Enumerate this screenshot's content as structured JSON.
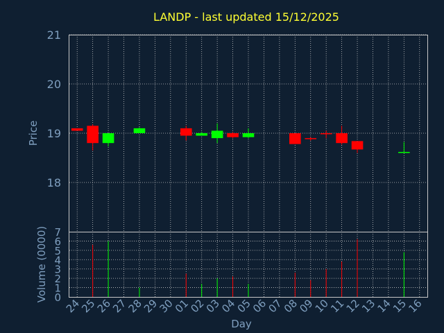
{
  "chart_data": {
    "type": "candlestick",
    "title": "LANDP - last updated 15/12/2025",
    "price_panel": {
      "ylabel": "Price",
      "ylim": [
        17.0,
        21.0
      ],
      "yticks": [
        18,
        19,
        20,
        21
      ]
    },
    "volume_panel": {
      "ylabel": "Volume (0000)",
      "ylim": [
        0,
        7
      ],
      "yticks": [
        0,
        1,
        2,
        3,
        4,
        5,
        6,
        7
      ]
    },
    "xlabel": "Day",
    "x_ticks": [
      "24",
      "25",
      "26",
      "27",
      "28",
      "29",
      "30",
      "01",
      "02",
      "03",
      "04",
      "05",
      "06",
      "07",
      "08",
      "09",
      "10",
      "11",
      "12",
      "13",
      "14",
      "15",
      "16"
    ],
    "candles": [
      {
        "day": "24",
        "open": 19.1,
        "high": 19.1,
        "low": 19.05,
        "close": 19.05,
        "volume": 0
      },
      {
        "day": "25",
        "open": 19.15,
        "high": 19.18,
        "low": 18.65,
        "close": 18.8,
        "volume": 5.6
      },
      {
        "day": "26",
        "open": 18.8,
        "high": 19.0,
        "low": 18.73,
        "close": 19.0,
        "volume": 6.0
      },
      {
        "day": "28",
        "open": 19.0,
        "high": 19.12,
        "low": 19.0,
        "close": 19.1,
        "volume": 1.0
      },
      {
        "day": "01",
        "open": 19.1,
        "high": 19.15,
        "low": 18.85,
        "close": 18.95,
        "volume": 2.5
      },
      {
        "day": "02",
        "open": 18.95,
        "high": 19.02,
        "low": 18.95,
        "close": 19.0,
        "volume": 1.4
      },
      {
        "day": "03",
        "open": 18.9,
        "high": 19.2,
        "low": 18.8,
        "close": 19.05,
        "volume": 2.0
      },
      {
        "day": "04",
        "open": 19.0,
        "high": 19.02,
        "low": 18.9,
        "close": 18.92,
        "volume": 2.2
      },
      {
        "day": "05",
        "open": 18.92,
        "high": 19.1,
        "low": 18.9,
        "close": 19.0,
        "volume": 1.4
      },
      {
        "day": "08",
        "open": 19.0,
        "high": 19.0,
        "low": 18.78,
        "close": 18.78,
        "volume": 2.6
      },
      {
        "day": "09",
        "open": 18.9,
        "high": 18.92,
        "low": 18.85,
        "close": 18.88,
        "volume": 1.8
      },
      {
        "day": "10",
        "open": 19.0,
        "high": 19.05,
        "low": 18.9,
        "close": 18.98,
        "volume": 3.0
      },
      {
        "day": "11",
        "open": 19.0,
        "high": 19.15,
        "low": 18.77,
        "close": 18.8,
        "volume": 3.8
      },
      {
        "day": "12",
        "open": 18.84,
        "high": 18.84,
        "low": 18.6,
        "close": 18.67,
        "volume": 6.2
      },
      {
        "day": "15",
        "open": 18.62,
        "high": 18.82,
        "low": 18.62,
        "close": 18.62,
        "volume": 4.8
      }
    ],
    "colors": {
      "background": "#0f1f31",
      "up": "#00ff00",
      "down": "#ff0000",
      "title": "#ffff33",
      "axis_text": "#7f9fbf",
      "grid": "#c8c8c8",
      "frame": "#c8c8c8"
    }
  }
}
